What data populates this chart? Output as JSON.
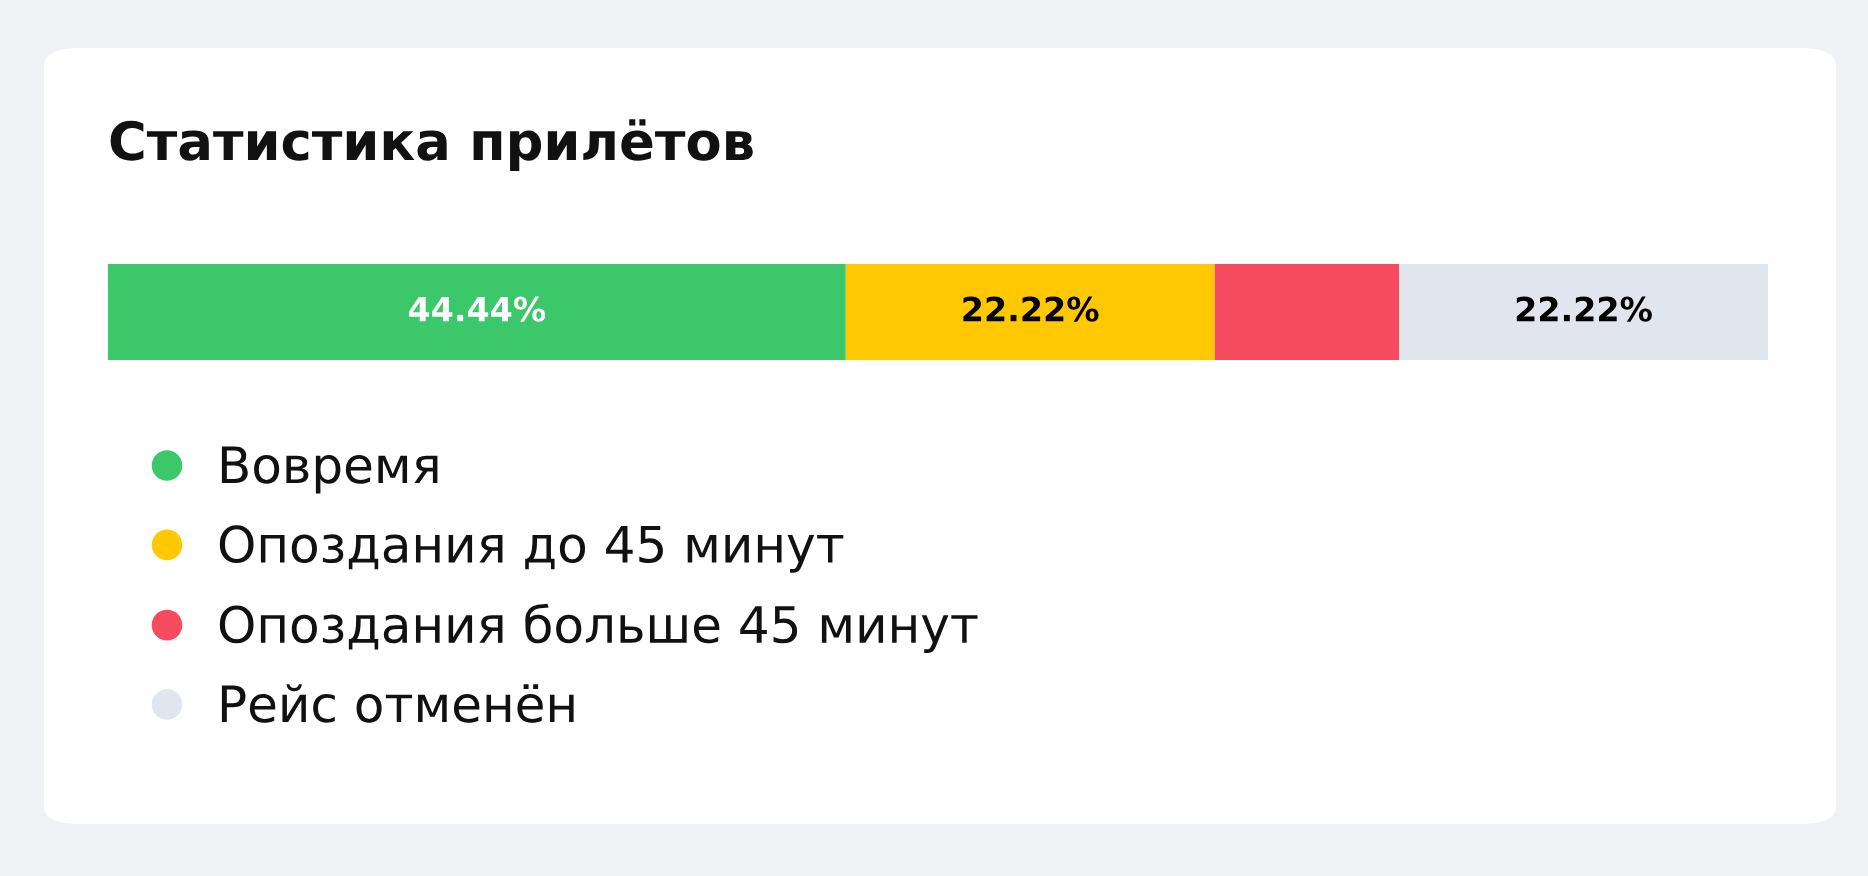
{
  "chart_data": {
    "type": "bar",
    "orientation": "horizontal",
    "stacked": true,
    "title": "Статистика прилётов",
    "categories": [
      null
    ],
    "series": [
      {
        "name": "Вовремя",
        "color": "#3cc76a",
        "values": [
          44.44
        ],
        "value_labels": [
          "44.44%"
        ]
      },
      {
        "name": "Опоздания до 45 минут",
        "color": "#ffc800",
        "values": [
          22.22
        ],
        "value_labels": [
          "22.22%"
        ]
      },
      {
        "name": "Опоздания больше 45 минут",
        "color": "#f64a5e",
        "values": [
          11.11
        ],
        "value_labels": [
          null
        ]
      },
      {
        "name": "Рейс отменён",
        "color": "#e1e5ee",
        "values": [
          22.22
        ],
        "value_labels": [
          "22.22%"
        ]
      }
    ],
    "legend": "bottom",
    "marker": "circle",
    "tick_labels": false
  }
}
